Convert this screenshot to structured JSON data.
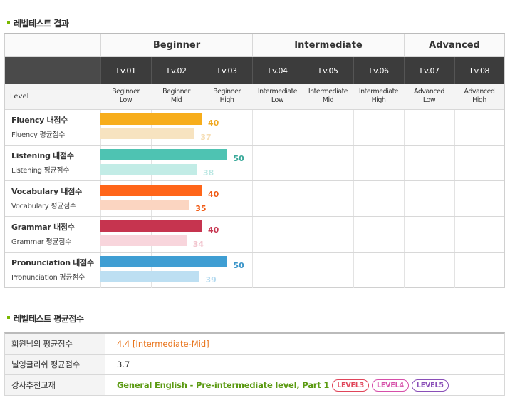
{
  "section1_title": "레벨테스트 결과",
  "section2_title": "레벨테스트 평균점수",
  "groups": [
    "Beginner",
    "Intermediate",
    "Advanced"
  ],
  "levels": [
    "Lv.01",
    "Lv.02",
    "Lv.03",
    "Lv.04",
    "Lv.05",
    "Lv.06",
    "Lv.07",
    "Lv.08"
  ],
  "level_header": "Level",
  "sublevels": [
    [
      "Beginner",
      "Low"
    ],
    [
      "Beginner",
      "Mid"
    ],
    [
      "Beginner",
      "High"
    ],
    [
      "Intermediate",
      "Low"
    ],
    [
      "Intermediate",
      "Mid"
    ],
    [
      "Intermediate",
      "High"
    ],
    [
      "Advanced",
      "Low"
    ],
    [
      "Advanced",
      "High"
    ]
  ],
  "chart_data": {
    "type": "bar",
    "categories": [
      "Fluency",
      "Listening",
      "Vocabulary",
      "Grammar",
      "Pronunciation"
    ],
    "series": [
      {
        "name": "내점수",
        "values": [
          40,
          50,
          40,
          40,
          50
        ]
      },
      {
        "name": "평균점수",
        "values": [
          37,
          38,
          35,
          34,
          39
        ]
      }
    ],
    "scale_max": 80,
    "colors": {
      "my": [
        "#f7ad1b",
        "#4ec3b2",
        "#ff6519",
        "#c6344f",
        "#3f9ed3"
      ],
      "avg": [
        "#f7e3c0",
        "#c2ece6",
        "#fbd5c1",
        "#f8d5dc",
        "#bddff2"
      ],
      "my_text": [
        "#f0a820",
        "#3aa99a",
        "#f05a14",
        "#c6344f",
        "#3b95c9"
      ],
      "avg_text": [
        "#f6deb4",
        "#b9e7e2",
        "#f05a14",
        "#f2c6cf",
        "#b6dbf0"
      ]
    }
  },
  "rows": [
    {
      "my_label": "Fluency 내점수",
      "avg_label": "Fluency 평균점수",
      "my_value": "40",
      "avg_value": "37"
    },
    {
      "my_label": "Listening 내점수",
      "avg_label": "Listening 평균점수",
      "my_value": "50",
      "avg_value": "38"
    },
    {
      "my_label": "Vocabulary 내점수",
      "avg_label": "Vocabulary 평균점수",
      "my_value": "40",
      "avg_value": "35"
    },
    {
      "my_label": "Grammar 내점수",
      "avg_label": "Grammar 평균점수",
      "my_value": "40",
      "avg_value": "34"
    },
    {
      "my_label": "Pronunciation 내점수",
      "avg_label": "Pronunciation 평균점수",
      "my_value": "50",
      "avg_value": "39"
    }
  ],
  "summary": {
    "member_avg_label": "회원님의 평균점수",
    "member_avg_value": "4.4 [Intermediate-Mid]",
    "site_avg_label": "닐잉글리쉬 평균점수",
    "site_avg_value": "3.7",
    "recommend_label": "강사추천교재",
    "recommend_value": "General English - Pre-intermediate level, Part 1",
    "badges": [
      {
        "label": "LEVEL3",
        "color": "#e0455a"
      },
      {
        "label": "LEVEL4",
        "color": "#d64fa9"
      },
      {
        "label": "LEVEL5",
        "color": "#8a4fb8"
      }
    ],
    "accent_orange": "#e8741c",
    "accent_green": "#5b9a12"
  }
}
